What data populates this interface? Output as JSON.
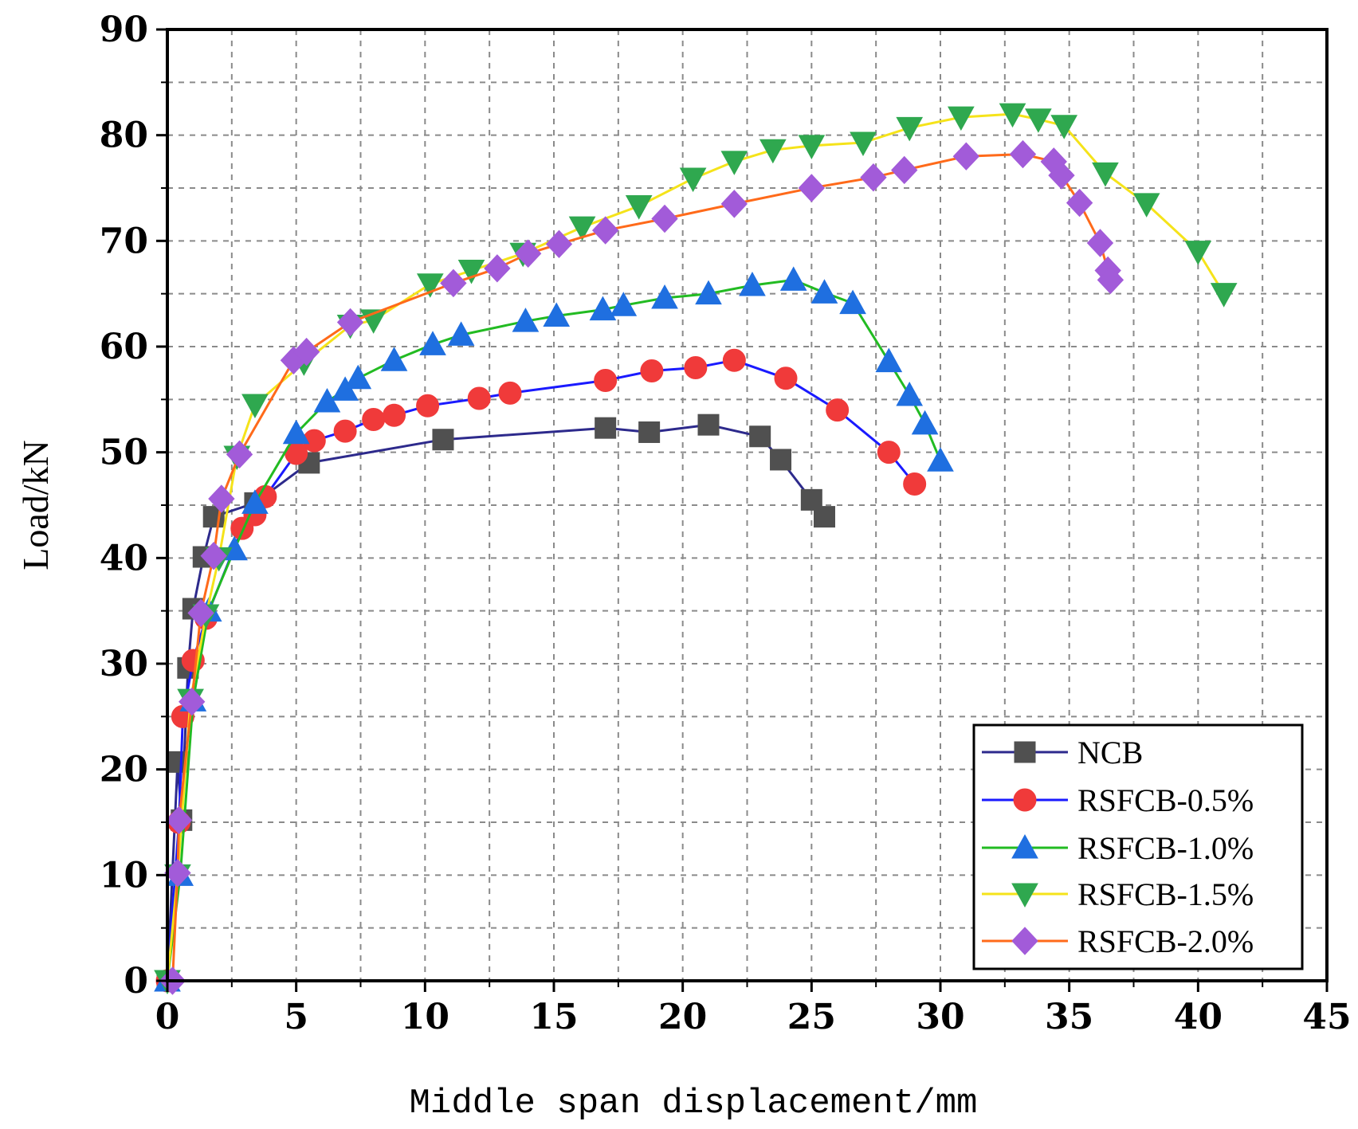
{
  "chart_data": {
    "type": "line",
    "title": "",
    "xlabel": "Middle span displacement/mm",
    "ylabel": "Load/kN",
    "xlim": [
      0,
      45
    ],
    "ylim": [
      0,
      90
    ],
    "xticks": [
      0,
      5,
      10,
      15,
      20,
      25,
      30,
      35,
      40,
      45
    ],
    "yticks": [
      0,
      10,
      20,
      30,
      40,
      50,
      60,
      70,
      80,
      90
    ],
    "xtick_labels": [
      "0",
      "5",
      "10",
      "15",
      "20",
      "25",
      "30",
      "35",
      "40",
      "45"
    ],
    "ytick_labels": [
      "0",
      "10",
      "20",
      "30",
      "40",
      "50",
      "60",
      "70",
      "80",
      "90"
    ],
    "grid": true,
    "legend_position": "bottom-right",
    "series": [
      {
        "name": "NCB",
        "line_color": "#2d2a8c",
        "marker": "square",
        "marker_color": "#505050",
        "x": [
          0,
          0.4,
          0.55,
          0.8,
          1.0,
          1.4,
          1.8,
          3.4,
          5.5,
          10.7,
          17.0,
          18.7,
          21.0,
          23.0,
          23.8,
          25.0,
          25.5
        ],
        "y": [
          0,
          20.7,
          15.2,
          29.6,
          35.2,
          40.1,
          43.9,
          45.2,
          49.0,
          51.2,
          52.3,
          51.9,
          52.6,
          51.5,
          49.3,
          45.5,
          43.9
        ]
      },
      {
        "name": "RSFCB-0.5%",
        "line_color": "#1a1aff",
        "marker": "circle",
        "marker_color": "#f03a3a",
        "x": [
          0,
          0.45,
          0.6,
          1.0,
          1.5,
          2.9,
          3.4,
          3.8,
          5.0,
          5.7,
          6.9,
          8.0,
          8.8,
          10.1,
          12.1,
          13.3,
          17.0,
          18.8,
          20.5,
          22.0,
          24.0,
          26.0,
          28.0,
          29.0
        ],
        "y": [
          0,
          15.0,
          25.0,
          30.3,
          34.3,
          42.8,
          44.1,
          45.8,
          49.9,
          51.1,
          52.0,
          53.1,
          53.5,
          54.4,
          55.1,
          55.6,
          56.8,
          57.7,
          58.0,
          58.7,
          57.0,
          54.0,
          50.0,
          47.0
        ]
      },
      {
        "name": "RSFCB-1.0%",
        "line_color": "#22bb22",
        "marker": "triangle-up",
        "marker_color": "#1f6fe0",
        "x": [
          0,
          0.5,
          1.0,
          1.6,
          2.6,
          3.4,
          5.0,
          6.2,
          6.9,
          7.4,
          8.8,
          10.3,
          11.4,
          13.9,
          15.1,
          16.9,
          17.7,
          19.3,
          21.0,
          22.7,
          24.3,
          25.5,
          26.6,
          28.0,
          28.8,
          29.4,
          30.0
        ],
        "y": [
          0,
          10.0,
          26.5,
          35.0,
          40.8,
          45.2,
          51.8,
          54.8,
          55.9,
          57.0,
          58.7,
          60.2,
          61.1,
          62.4,
          62.9,
          63.5,
          63.9,
          64.6,
          65.0,
          65.8,
          66.3,
          65.1,
          64.1,
          58.6,
          55.4,
          52.7,
          49.2
        ]
      },
      {
        "name": "RSFCB-1.5%",
        "line_color": "#f5e31a",
        "marker": "triangle-down",
        "marker_color": "#2fa84f",
        "x": [
          0,
          0.4,
          0.9,
          1.5,
          2.0,
          2.7,
          3.4,
          5.3,
          7.1,
          8.0,
          10.2,
          11.8,
          13.8,
          16.1,
          18.3,
          20.4,
          22.0,
          23.5,
          25.0,
          27.0,
          28.8,
          30.8,
          32.8,
          33.8,
          34.8,
          36.4,
          38.0,
          40.0,
          41.0
        ],
        "y": [
          0,
          10.0,
          26.6,
          34.6,
          40.0,
          49.6,
          54.5,
          58.5,
          62.0,
          62.5,
          65.9,
          67.2,
          68.8,
          71.3,
          73.3,
          75.9,
          77.5,
          78.6,
          79.0,
          79.3,
          80.7,
          81.7,
          82.0,
          81.5,
          80.9,
          76.4,
          73.5,
          69.0,
          65.0
        ]
      },
      {
        "name": "RSFCB-2.0%",
        "line_color": "#ff6a1a",
        "marker": "diamond",
        "marker_color": "#a25bd9",
        "x": [
          0.2,
          0.4,
          0.45,
          0.95,
          1.3,
          1.8,
          2.1,
          2.8,
          4.9,
          5.4,
          7.1,
          11.1,
          12.8,
          14.0,
          15.2,
          17.0,
          19.3,
          22.0,
          25.0,
          27.4,
          28.6,
          31.0,
          33.2,
          34.4,
          34.7,
          35.4,
          36.2,
          36.5,
          36.6
        ],
        "y": [
          0,
          10.2,
          15.2,
          26.4,
          34.8,
          40.2,
          45.6,
          49.8,
          58.7,
          59.5,
          62.3,
          66.0,
          67.4,
          68.8,
          69.7,
          71.0,
          72.1,
          73.5,
          75.0,
          76.0,
          76.7,
          78.0,
          78.2,
          77.5,
          76.2,
          73.6,
          69.8,
          67.2,
          66.3
        ]
      }
    ]
  }
}
